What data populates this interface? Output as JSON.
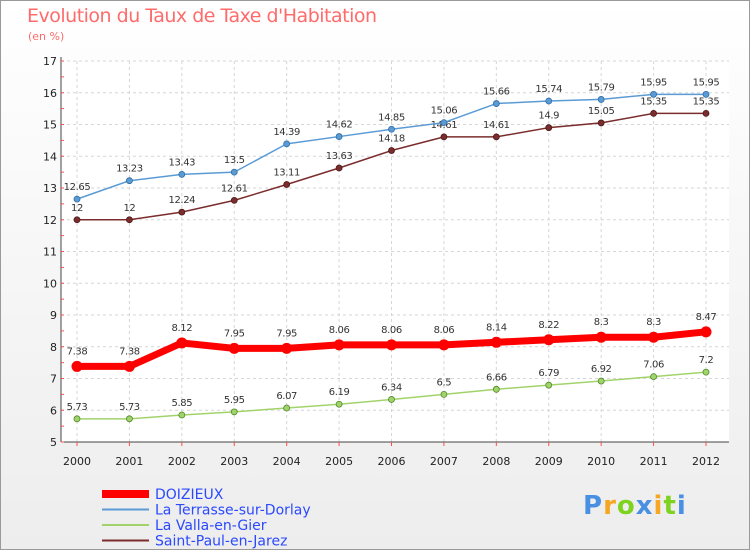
{
  "chart_data": {
    "type": "line",
    "title": "Evolution du Taux de Taxe d'Habitation",
    "subtitle": "(en %)",
    "x": [
      "2000",
      "2001",
      "2002",
      "2003",
      "2004",
      "2005",
      "2006",
      "2007",
      "2008",
      "2009",
      "2010",
      "2011",
      "2012"
    ],
    "ylim": [
      5,
      17
    ],
    "yticks": [
      5,
      6,
      7,
      8,
      9,
      10,
      11,
      12,
      13,
      14,
      15,
      16,
      17
    ],
    "grid": true,
    "legend_position": "bottom-left",
    "series": [
      {
        "name": "DOIZIEUX",
        "color": "#ff0000",
        "values": [
          7.38,
          7.38,
          8.12,
          7.95,
          7.95,
          8.06,
          8.06,
          8.06,
          8.14,
          8.22,
          8.3,
          8.3,
          8.47
        ],
        "labels": [
          "7.38",
          "7.38",
          "8.12",
          "7.95",
          "7.95",
          "8.06",
          "8.06",
          "8.06",
          "8.14",
          "8.22",
          "8.3",
          "8.3",
          "8.47"
        ]
      },
      {
        "name": "La Terrasse-sur-Dorlay",
        "color": "#5b9bd5",
        "values": [
          12.65,
          13.23,
          13.43,
          13.5,
          14.39,
          14.62,
          14.85,
          15.06,
          15.66,
          15.74,
          15.79,
          15.95,
          15.95
        ],
        "labels": [
          "12.65",
          "13.23",
          "13.43",
          "13.5",
          "14.39",
          "14.62",
          "14.85",
          "15.06",
          "15.66",
          "15.74",
          "15.79",
          "15.95",
          "15.95"
        ]
      },
      {
        "name": "La Valla-en-Gier",
        "color": "#a2d36b",
        "values": [
          5.73,
          5.73,
          5.85,
          5.95,
          6.07,
          6.19,
          6.34,
          6.5,
          6.66,
          6.79,
          6.92,
          7.06,
          7.2
        ],
        "labels": [
          "5.73",
          "5.73",
          "5.85",
          "5.95",
          "6.07",
          "6.19",
          "6.34",
          "6.5",
          "6.66",
          "6.79",
          "6.92",
          "7.06",
          "7.2"
        ]
      },
      {
        "name": "Saint-Paul-en-Jarez",
        "color": "#7b2c2c",
        "values": [
          12,
          12,
          12.24,
          12.61,
          13.11,
          13.63,
          14.18,
          14.61,
          14.61,
          14.9,
          15.05,
          15.35,
          15.35
        ],
        "labels": [
          "12",
          "12",
          "12.24",
          "12.61",
          "13.11",
          "13.63",
          "14.18",
          "14.61",
          "14.61",
          "14.9",
          "15.05",
          "15.35",
          "15.35"
        ]
      }
    ]
  },
  "brand": {
    "letters": [
      "P",
      "r",
      "o",
      "x",
      "i",
      "t",
      "i"
    ],
    "colors": [
      "#4a90e2",
      "#f5a623",
      "#7ed321",
      "#4a90e2",
      "#f5a623",
      "#7ed321",
      "#4a90e2"
    ]
  }
}
